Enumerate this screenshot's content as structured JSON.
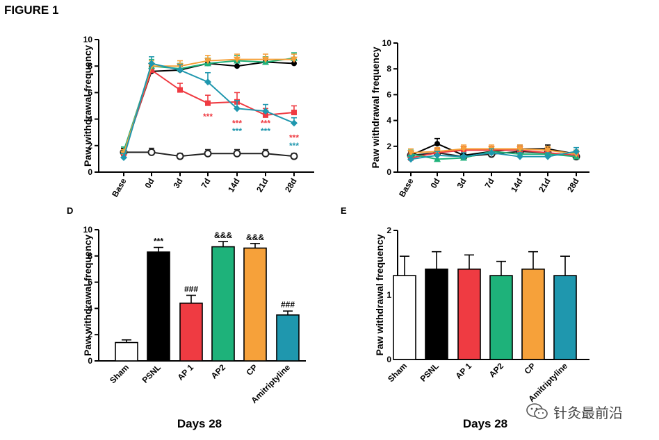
{
  "figure_title": "FIGURE 1",
  "watermark": {
    "text": "针灸最前沿",
    "icon": "wechat-logo-icon"
  },
  "colors": {
    "sham": "#ffffff",
    "psnl": "#000000",
    "ap1": "#ef3b42",
    "ap2": "#1eb27a",
    "cp": "#f6a13a",
    "ami": "#1f97ae"
  },
  "chart_data": [
    {
      "id": "panel-b",
      "type": "line",
      "panel_label": "",
      "ylabel": "Paw withdrawal frequency",
      "xlabel": "",
      "categories": [
        "Base",
        "0d",
        "3d",
        "7d",
        "14d",
        "21d",
        "28d"
      ],
      "ylim": [
        0,
        10
      ],
      "yticks": [
        0,
        2,
        4,
        6,
        8,
        10
      ],
      "series": [
        {
          "key": "sham",
          "marker": "open-circle",
          "values": [
            1.5,
            1.5,
            1.2,
            1.4,
            1.4,
            1.4,
            1.2
          ],
          "err": [
            0.2,
            0.3,
            0.2,
            0.3,
            0.3,
            0.3,
            0.2
          ]
        },
        {
          "key": "psnl",
          "marker": "circle",
          "values": [
            1.5,
            7.6,
            7.7,
            8.2,
            8.0,
            8.3,
            8.2
          ],
          "err": [
            0.3,
            0.4,
            0.3,
            0.3,
            0.3,
            0.3,
            0.3
          ]
        },
        {
          "key": "ap1",
          "marker": "square",
          "values": [
            1.4,
            7.7,
            6.2,
            5.2,
            5.3,
            4.3,
            4.5
          ],
          "err": [
            0.3,
            0.4,
            0.5,
            0.6,
            0.7,
            0.5,
            0.5
          ]
        },
        {
          "key": "ap2",
          "marker": "triangle",
          "values": [
            1.6,
            8.0,
            7.8,
            8.2,
            8.4,
            8.3,
            8.6
          ],
          "err": [
            0.3,
            0.5,
            0.4,
            0.4,
            0.4,
            0.4,
            0.4
          ]
        },
        {
          "key": "cp",
          "marker": "inv-triangle",
          "values": [
            1.4,
            8.0,
            8.0,
            8.4,
            8.5,
            8.5,
            8.5
          ],
          "err": [
            0.3,
            0.4,
            0.4,
            0.4,
            0.4,
            0.4,
            0.4
          ]
        },
        {
          "key": "ami",
          "marker": "diamond",
          "values": [
            1.1,
            8.2,
            7.7,
            6.8,
            4.8,
            4.6,
            3.7
          ],
          "err": [
            0.3,
            0.5,
            0.4,
            0.7,
            0.6,
            0.5,
            0.4
          ]
        }
      ],
      "annotations": [
        {
          "x": "7d",
          "y": 4.3,
          "text": "***",
          "color_key": "ap1"
        },
        {
          "x": "14d",
          "y": 3.8,
          "text": "***",
          "color_key": "ap1"
        },
        {
          "x": "14d",
          "y": 3.2,
          "text": "***",
          "color_key": "ami"
        },
        {
          "x": "21d",
          "y": 3.8,
          "text": "***",
          "color_key": "ap1"
        },
        {
          "x": "21d",
          "y": 3.2,
          "text": "***",
          "color_key": "ami"
        },
        {
          "x": "28d",
          "y": 2.7,
          "text": "***",
          "color_key": "ap1"
        },
        {
          "x": "28d",
          "y": 2.1,
          "text": "***",
          "color_key": "ami"
        }
      ]
    },
    {
      "id": "panel-c",
      "type": "line",
      "panel_label": "",
      "ylabel": "Paw withdrawal frequency",
      "xlabel": "",
      "categories": [
        "Base",
        "0d",
        "3d",
        "7d",
        "14d",
        "21d",
        "28d"
      ],
      "ylim": [
        0,
        10
      ],
      "yticks": [
        0,
        2,
        4,
        6,
        8,
        10
      ],
      "series": [
        {
          "key": "sham",
          "marker": "open-circle",
          "values": [
            1.3,
            1.5,
            1.2,
            1.4,
            1.6,
            1.5,
            1.2
          ],
          "err": [
            0.2,
            0.3,
            0.2,
            0.2,
            0.3,
            0.3,
            0.2
          ]
        },
        {
          "key": "psnl",
          "marker": "circle",
          "values": [
            1.3,
            2.2,
            1.3,
            1.6,
            1.8,
            1.8,
            1.4
          ],
          "err": [
            0.3,
            0.4,
            0.3,
            0.3,
            0.3,
            0.3,
            0.3
          ]
        },
        {
          "key": "ap1",
          "marker": "square",
          "values": [
            1.1,
            1.5,
            1.7,
            1.7,
            1.7,
            1.5,
            1.3
          ],
          "err": [
            0.3,
            0.3,
            0.3,
            0.3,
            0.3,
            0.3,
            0.3
          ]
        },
        {
          "key": "ap2",
          "marker": "triangle",
          "values": [
            1.4,
            1.0,
            1.1,
            1.6,
            1.4,
            1.4,
            1.2
          ],
          "err": [
            0.3,
            0.3,
            0.2,
            0.3,
            0.3,
            0.3,
            0.3
          ]
        },
        {
          "key": "cp",
          "marker": "inv-triangle",
          "values": [
            1.5,
            1.6,
            1.8,
            1.8,
            1.8,
            1.7,
            1.4
          ],
          "err": [
            0.3,
            0.3,
            0.3,
            0.3,
            0.3,
            0.3,
            0.3
          ]
        },
        {
          "key": "ami",
          "marker": "diamond",
          "values": [
            1.0,
            1.3,
            1.2,
            1.5,
            1.2,
            1.2,
            1.6
          ],
          "err": [
            0.3,
            0.3,
            0.3,
            0.3,
            0.3,
            0.3,
            0.3
          ]
        }
      ],
      "annotations": []
    },
    {
      "id": "panel-d",
      "type": "bar",
      "panel_label": "D",
      "ylabel": "Paw withdrawal frequency",
      "xlabel": "Days 28",
      "categories": [
        "Sham",
        "PSNL",
        "AP 1",
        "AP2",
        "CP",
        "Amitriptyline"
      ],
      "color_keys": [
        "sham",
        "psnl",
        "ap1",
        "ap2",
        "cp",
        "ami"
      ],
      "values": [
        1.4,
        8.3,
        4.4,
        8.7,
        8.6,
        3.5
      ],
      "err": [
        0.2,
        0.35,
        0.6,
        0.4,
        0.35,
        0.3
      ],
      "labels": [
        "",
        "***",
        "###",
        "&&&",
        "&&&",
        "###"
      ],
      "ylim": [
        0,
        10
      ],
      "yticks": [
        0,
        2,
        4,
        6,
        8,
        10
      ]
    },
    {
      "id": "panel-e",
      "type": "bar",
      "panel_label": "E",
      "ylabel": "Paw withdrawal frequency",
      "xlabel": "Days 28",
      "categories": [
        "Sham",
        "PSNL",
        "AP 1",
        "AP2",
        "CP",
        "Amitriptyline"
      ],
      "color_keys": [
        "sham",
        "psnl",
        "ap1",
        "ap2",
        "cp",
        "ami"
      ],
      "values": [
        1.3,
        1.4,
        1.4,
        1.3,
        1.4,
        1.3
      ],
      "err": [
        0.3,
        0.27,
        0.22,
        0.22,
        0.27,
        0.3
      ],
      "labels": [
        "",
        "",
        "",
        "",
        "",
        ""
      ],
      "ylim": [
        0,
        2
      ],
      "yticks": [
        0,
        1,
        2
      ]
    }
  ]
}
